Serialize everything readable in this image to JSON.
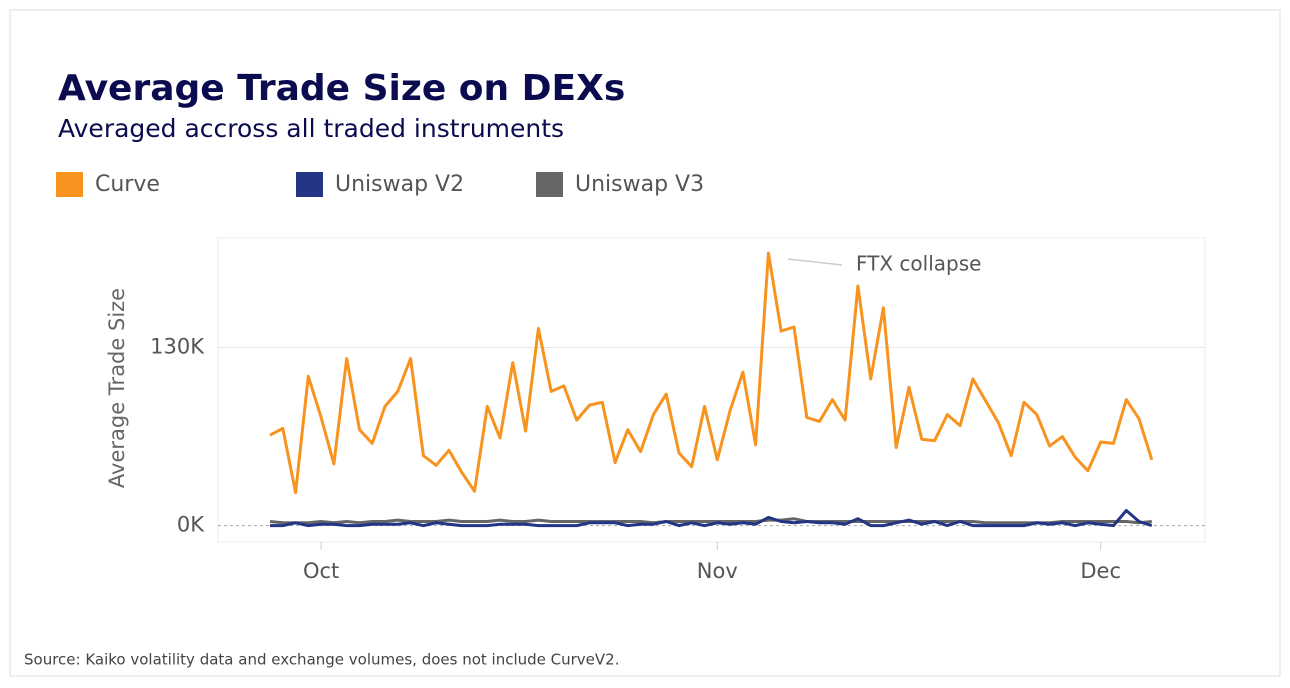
{
  "chart_data": {
    "type": "line",
    "title": "Average Trade Size on DEXs",
    "subtitle": "Averaged accross all traded instruments",
    "y_label": "Average Trade Size",
    "source": "Source: Kaiko volatility data and exchange volumes, does not include CurveV2.",
    "annotation": "FTX collapse",
    "categories": [
      null,
      null,
      null,
      null,
      "Oct",
      null,
      null,
      null,
      null,
      null,
      null,
      null,
      null,
      null,
      null,
      null,
      null,
      null,
      null,
      null,
      null,
      null,
      null,
      null,
      null,
      null,
      null,
      null,
      null,
      null,
      null,
      null,
      null,
      null,
      null,
      "Nov",
      null,
      null,
      null,
      null,
      null,
      null,
      null,
      null,
      null,
      null,
      null,
      null,
      null,
      null,
      null,
      null,
      null,
      null,
      null,
      null,
      null,
      null,
      null,
      null,
      null,
      null,
      null,
      null,
      null,
      "Dec",
      null,
      null,
      null,
      null
    ],
    "series": [
      {
        "name": "Curve",
        "color": "#f7931e",
        "values": [
          66,
          71,
          24,
          109,
          79,
          45,
          122,
          70,
          60,
          87,
          98,
          122,
          51,
          44,
          55,
          39,
          25,
          87,
          64,
          119,
          69,
          144,
          98,
          102,
          77,
          88,
          90,
          46,
          70,
          54,
          81,
          96,
          53,
          43,
          87,
          48,
          84,
          112,
          59,
          199,
          142,
          145,
          79,
          76,
          92,
          77,
          175,
          107,
          159,
          57,
          101,
          63,
          62,
          81,
          73,
          107,
          91,
          75,
          51,
          90,
          81,
          58,
          65,
          50,
          40,
          61,
          60,
          92,
          78,
          48
        ]
      },
      {
        "name": "Uniswap V2",
        "color": "#243585",
        "values": [
          0,
          0,
          2,
          0,
          1,
          1,
          0,
          0,
          1,
          1,
          1,
          2,
          0,
          2,
          1,
          0,
          0,
          0,
          1,
          1,
          1,
          0,
          0,
          0,
          0,
          2,
          2,
          2,
          0,
          1,
          1,
          3,
          0,
          2,
          0,
          2,
          1,
          2,
          1,
          6,
          3,
          2,
          3,
          2,
          2,
          1,
          5,
          0,
          0,
          2,
          4,
          1,
          3,
          0,
          3,
          0,
          0,
          0,
          0,
          0,
          2,
          1,
          2,
          0,
          2,
          1,
          0,
          11,
          3,
          0
        ]
      },
      {
        "name": "Uniswap V3",
        "color": "#666666",
        "values": [
          3,
          2,
          2,
          2,
          3,
          2,
          3,
          2,
          3,
          3,
          4,
          3,
          3,
          3,
          4,
          3,
          3,
          3,
          4,
          3,
          3,
          4,
          3,
          3,
          3,
          3,
          3,
          3,
          3,
          3,
          2,
          3,
          3,
          3,
          3,
          3,
          3,
          3,
          3,
          4,
          4,
          5,
          3,
          3,
          3,
          3,
          3,
          3,
          3,
          3,
          3,
          3,
          3,
          3,
          3,
          3,
          2,
          2,
          2,
          2,
          2,
          2,
          3,
          3,
          3,
          3,
          3,
          3,
          2,
          3
        ]
      }
    ],
    "ylim": [
      -12,
      210
    ],
    "yticks": [
      {
        "value": 0,
        "label": "0K"
      },
      {
        "value": 130,
        "label": "130K"
      }
    ],
    "grid": true,
    "legend": "top-left"
  }
}
